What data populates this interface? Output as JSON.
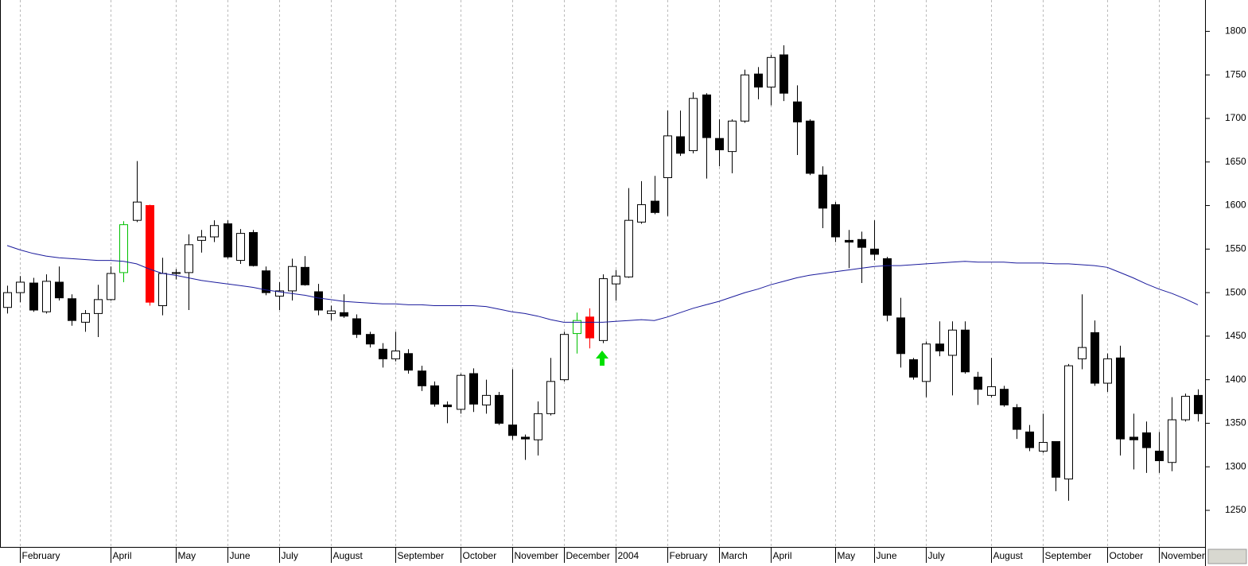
{
  "chart_data": {
    "type": "candlestick",
    "categories": [
      null,
      "February",
      null,
      null,
      null,
      null,
      null,
      null,
      "April",
      null,
      null,
      null,
      null,
      "May",
      null,
      null,
      null,
      "June",
      null,
      null,
      null,
      "July",
      null,
      null,
      null,
      "August",
      null,
      null,
      null,
      null,
      "September",
      null,
      null,
      null,
      null,
      "October",
      null,
      null,
      null,
      "November",
      null,
      null,
      null,
      "December",
      null,
      null,
      null,
      "2004",
      null,
      null,
      null,
      "February",
      null,
      null,
      null,
      "March",
      null,
      null,
      null,
      "April",
      null,
      null,
      null,
      null,
      "May",
      null,
      null,
      "June",
      null,
      null,
      null,
      "July",
      null,
      null,
      null,
      null,
      "August",
      null,
      null,
      null,
      "September",
      null,
      null,
      null,
      null,
      "October",
      null,
      null,
      null,
      "November",
      null,
      null,
      null
    ],
    "open": [
      1483,
      1500,
      1511,
      1478,
      1512,
      1493,
      1466,
      1476,
      1492,
      1523,
      1583,
      1600,
      1485,
      1522,
      1523,
      1560,
      1564,
      1579,
      1537,
      1569,
      1525,
      1496,
      1502,
      1529,
      1501,
      1476,
      1477,
      1470,
      1452,
      1435,
      1424,
      1430,
      1410,
      1393,
      1371,
      1366,
      1407,
      1371,
      1382,
      1348,
      1334,
      1331,
      1361,
      1400,
      1453,
      1472,
      1445,
      1510,
      1518,
      1581,
      1605,
      1632,
      1679,
      1663,
      1727,
      1677,
      1662,
      1697,
      1751,
      1736,
      1773,
      1719,
      1697,
      1635,
      1601,
      1560,
      1561,
      1550,
      1539,
      1471,
      1423,
      1398,
      1441,
      1428,
      1457,
      1403,
      1382,
      1389,
      1368,
      1340,
      1318,
      1329,
      1286,
      1424,
      1454,
      1396,
      1425,
      1334,
      1339,
      1318,
      1305,
      1354,
      1382
    ],
    "high": [
      1508,
      1519,
      1517,
      1521,
      1530,
      1498,
      1480,
      1509,
      1530,
      1582,
      1651,
      1601,
      1540,
      1527,
      1567,
      1572,
      1583,
      1583,
      1573,
      1572,
      1530,
      1512,
      1539,
      1542,
      1510,
      1485,
      1498,
      1475,
      1455,
      1442,
      1455,
      1435,
      1416,
      1398,
      1375,
      1407,
      1413,
      1400,
      1386,
      1412,
      1337,
      1375,
      1425,
      1455,
      1477,
      1482,
      1521,
      1526,
      1620,
      1628,
      1634,
      1709,
      1709,
      1730,
      1729,
      1699,
      1699,
      1756,
      1759,
      1773,
      1784,
      1738,
      1699,
      1645,
      1604,
      1572,
      1570,
      1583,
      1541,
      1494,
      1425,
      1444,
      1467,
      1467,
      1467,
      1409,
      1425,
      1393,
      1372,
      1348,
      1361,
      1329,
      1418,
      1498,
      1468,
      1430,
      1439,
      1361,
      1352,
      1340,
      1380,
      1384,
      1389
    ],
    "low": [
      1476,
      1489,
      1478,
      1476,
      1491,
      1462,
      1455,
      1449,
      1491,
      1512,
      1581,
      1485,
      1474,
      1515,
      1480,
      1546,
      1558,
      1539,
      1533,
      1530,
      1497,
      1480,
      1491,
      1508,
      1474,
      1468,
      1471,
      1448,
      1437,
      1414,
      1421,
      1407,
      1387,
      1369,
      1350,
      1361,
      1363,
      1361,
      1348,
      1331,
      1308,
      1313,
      1359,
      1398,
      1430,
      1436,
      1442,
      1491,
      1517,
      1579,
      1590,
      1588,
      1657,
      1660,
      1631,
      1645,
      1637,
      1695,
      1722,
      1715,
      1720,
      1658,
      1635,
      1574,
      1558,
      1528,
      1511,
      1537,
      1467,
      1414,
      1400,
      1380,
      1427,
      1382,
      1407,
      1371,
      1380,
      1369,
      1332,
      1318,
      1316,
      1272,
      1261,
      1412,
      1393,
      1386,
      1313,
      1297,
      1293,
      1293,
      1295,
      1352,
      1352
    ],
    "close": [
      1500,
      1512,
      1480,
      1513,
      1494,
      1468,
      1476,
      1492,
      1522,
      1578,
      1604,
      1489,
      1522,
      1523,
      1555,
      1564,
      1577,
      1541,
      1568,
      1531,
      1500,
      1502,
      1530,
      1509,
      1480,
      1479,
      1473,
      1452,
      1441,
      1424,
      1433,
      1411,
      1393,
      1372,
      1369,
      1405,
      1372,
      1382,
      1350,
      1336,
      1332,
      1361,
      1398,
      1452,
      1468,
      1448,
      1516,
      1519,
      1583,
      1601,
      1592,
      1680,
      1660,
      1723,
      1678,
      1664,
      1697,
      1750,
      1736,
      1770,
      1729,
      1696,
      1637,
      1597,
      1564,
      1558,
      1552,
      1544,
      1474,
      1430,
      1403,
      1441,
      1433,
      1457,
      1409,
      1389,
      1392,
      1371,
      1343,
      1322,
      1328,
      1288,
      1416,
      1437,
      1396,
      1424,
      1332,
      1331,
      1322,
      1307,
      1354,
      1381,
      1361
    ],
    "colors": [
      "#000000",
      "#000000",
      "#000000",
      "#000000",
      "#000000",
      "#000000",
      "#000000",
      "#000000",
      "#000000",
      "#00c000",
      "#000000",
      "#ff0000",
      "#000000",
      "#000000",
      "#000000",
      "#000000",
      "#000000",
      "#000000",
      "#000000",
      "#000000",
      "#000000",
      "#000000",
      "#000000",
      "#000000",
      "#000000",
      "#000000",
      "#000000",
      "#000000",
      "#000000",
      "#000000",
      "#000000",
      "#000000",
      "#000000",
      "#000000",
      "#000000",
      "#000000",
      "#000000",
      "#000000",
      "#000000",
      "#000000",
      "#000000",
      "#000000",
      "#000000",
      "#000000",
      "#00c000",
      "#ff0000",
      "#000000",
      "#000000",
      "#000000",
      "#000000",
      "#000000",
      "#000000",
      "#000000",
      "#000000",
      "#000000",
      "#000000",
      "#000000",
      "#000000",
      "#000000",
      "#000000",
      "#000000",
      "#000000",
      "#000000",
      "#000000",
      "#000000",
      "#000000",
      "#000000",
      "#000000",
      "#000000",
      "#000000",
      "#000000",
      "#000000",
      "#000000",
      "#000000",
      "#000000",
      "#000000",
      "#000000",
      "#000000",
      "#000000",
      "#000000",
      "#000000",
      "#000000",
      "#000000",
      "#000000",
      "#000000",
      "#000000",
      "#000000",
      "#000000",
      "#000000",
      "#000000",
      "#000000",
      "#000000",
      "#000000"
    ],
    "moving_average": {
      "color": "#1a1a9c",
      "values": [
        1554,
        1549,
        1545,
        1542,
        1540,
        1539,
        1538,
        1537,
        1537,
        1536,
        1533,
        1527,
        1522,
        1520,
        1517,
        1514,
        1512,
        1510,
        1508,
        1506,
        1503,
        1501,
        1499,
        1497,
        1494,
        1492,
        1490,
        1489,
        1488,
        1487,
        1487,
        1486,
        1486,
        1485,
        1485,
        1485,
        1485,
        1484,
        1481,
        1478,
        1476,
        1473,
        1469,
        1466,
        1466,
        1466,
        1466,
        1467,
        1468,
        1469,
        1468,
        1472,
        1477,
        1482,
        1486,
        1490,
        1495,
        1500,
        1504,
        1509,
        1513,
        1517,
        1520,
        1522,
        1524,
        1526,
        1528,
        1530,
        1531,
        1531,
        1532,
        1533,
        1534,
        1535,
        1536,
        1535,
        1535,
        1535,
        1534,
        1534,
        1534,
        1533,
        1533,
        1532,
        1531,
        1529,
        1523,
        1517,
        1510,
        1504,
        1499,
        1493,
        1486
      ]
    },
    "ylim": [
      1208,
      1836
    ],
    "yticks": [
      1250,
      1300,
      1350,
      1400,
      1450,
      1500,
      1550,
      1600,
      1650,
      1700,
      1750,
      1800
    ],
    "grid": true
  }
}
